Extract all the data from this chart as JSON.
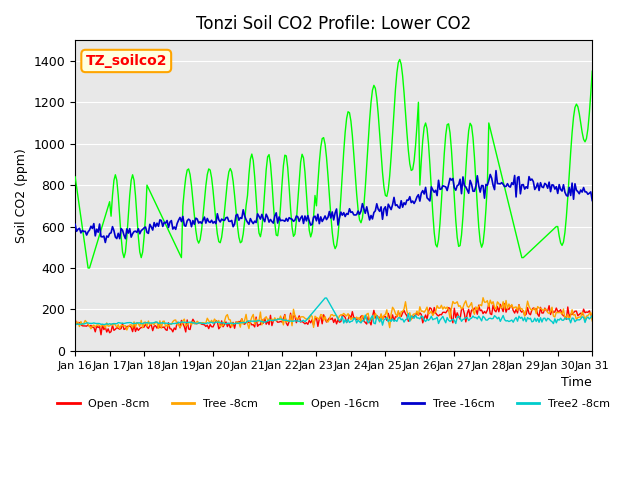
{
  "title": "Tonzi Soil CO2 Profile: Lower CO2",
  "xlabel": "Time",
  "ylabel": "Soil CO2 (ppm)",
  "watermark": "TZ_soilco2",
  "ylim": [
    0,
    1500
  ],
  "yticks": [
    0,
    200,
    400,
    600,
    800,
    1000,
    1200,
    1400
  ],
  "xlim": [
    0,
    360
  ],
  "xtick_labels": [
    "Jan 16",
    "Jan 17",
    "Jan 18",
    "Jan 19",
    "Jan 20",
    "Jan 21",
    "Jan 22",
    "Jan 23",
    "Jan 24",
    "Jan 25",
    "Jan 26",
    "Jan 27",
    "Jan 28",
    "Jan 29",
    "Jan 30",
    "Jan 31"
  ],
  "xtick_positions": [
    0,
    24,
    48,
    72,
    96,
    120,
    144,
    168,
    192,
    216,
    240,
    264,
    288,
    312,
    336,
    360
  ],
  "bg_color": "#e8e8e8",
  "plot_bg": "#e8e8e8",
  "series": {
    "open_8cm": {
      "color": "#ff0000",
      "label": "Open -8cm"
    },
    "tree_8cm": {
      "color": "#ffa500",
      "label": "Tree -8cm"
    },
    "open_16cm": {
      "color": "#00ff00",
      "label": "Open -16cm"
    },
    "tree_16cm": {
      "color": "#0000cc",
      "label": "Tree -16cm"
    },
    "tree2_8cm": {
      "color": "#00cccc",
      "label": "Tree2 -8cm"
    }
  }
}
